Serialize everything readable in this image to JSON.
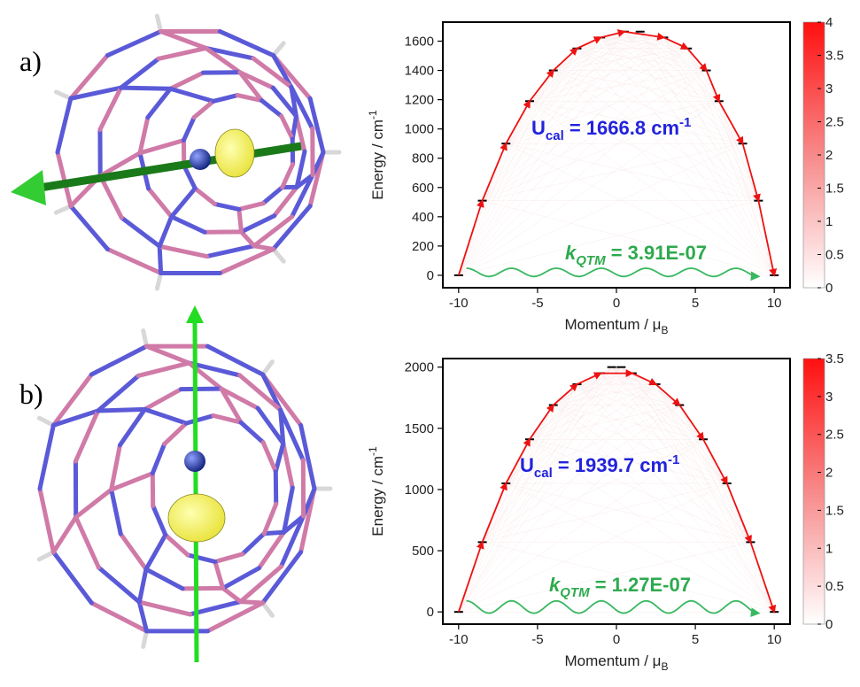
{
  "figure": {
    "panel_labels": [
      "a)",
      "b)"
    ]
  },
  "colors": {
    "ucal": "#2222dd",
    "kqtm": "#2eaa4e",
    "path": "#ee1111",
    "qtm": "#38b860",
    "molecule_bond_a": "#5a5ad8",
    "molecule_bond_b": "#d07aa8",
    "spin_axis_a": "#1a7a1a",
    "spin_axis_b": "#22dd22",
    "density": "#ffff55",
    "atom": "#1a2aa0"
  },
  "chart_data": [
    {
      "type": "line",
      "xlabel_main": "Momentum / μ",
      "xlabel_sub": "B",
      "ylabel_main": "Energy / cm",
      "ylabel_sup": "-1",
      "xlim": [
        -11,
        11
      ],
      "ylim": [
        -85,
        1730
      ],
      "xticks": [
        -10,
        -5,
        0,
        5,
        10
      ],
      "yticks": [
        0,
        200,
        400,
        600,
        800,
        1000,
        1200,
        1400,
        1600
      ],
      "states": [
        {
          "x": -10,
          "y": 0
        },
        {
          "x": -8.5,
          "y": 510
        },
        {
          "x": -7,
          "y": 900
        },
        {
          "x": -5.5,
          "y": 1190
        },
        {
          "x": -4,
          "y": 1400
        },
        {
          "x": -2.5,
          "y": 1550
        },
        {
          "x": -1,
          "y": 1625
        },
        {
          "x": 0.5,
          "y": 1665
        },
        {
          "x": 1.5,
          "y": 1665
        },
        {
          "x": 3,
          "y": 1625
        },
        {
          "x": 4.5,
          "y": 1550
        },
        {
          "x": 5.7,
          "y": 1400
        },
        {
          "x": 6.5,
          "y": 1190
        },
        {
          "x": 8,
          "y": 900
        },
        {
          "x": 9,
          "y": 510
        },
        {
          "x": 10,
          "y": 0
        }
      ],
      "relaxation_path": [
        {
          "x": -10,
          "y": 0
        },
        {
          "x": -8.5,
          "y": 510
        },
        {
          "x": -7,
          "y": 900
        },
        {
          "x": -5.5,
          "y": 1190
        },
        {
          "x": -4,
          "y": 1400
        },
        {
          "x": -2.5,
          "y": 1550
        },
        {
          "x": -1,
          "y": 1625
        },
        {
          "x": 0.5,
          "y": 1665
        },
        {
          "x": 3,
          "y": 1625
        },
        {
          "x": 4.5,
          "y": 1550
        },
        {
          "x": 5.7,
          "y": 1400
        },
        {
          "x": 6.5,
          "y": 1190
        },
        {
          "x": 8,
          "y": 900
        },
        {
          "x": 9,
          "y": 510
        },
        {
          "x": 10,
          "y": 0
        }
      ],
      "qtm_wave": {
        "x_start": -9.5,
        "x_end": 9,
        "base": 20,
        "amplitude": 28,
        "periods": 6.5
      },
      "ucal_prefix": "U",
      "ucal_sub": "cal",
      "ucal_value": " = 1666.8 cm",
      "ucal_sup": "-1",
      "kqtm_prefix": "k",
      "kqtm_sub": "QTM",
      "kqtm_value": " = 3.91E-07",
      "colorbar": {
        "min": 0,
        "max": 4,
        "ticks": [
          "0",
          "0.5",
          "1",
          "1.5",
          "2",
          "2.5",
          "3",
          "3.5",
          "4"
        ]
      }
    },
    {
      "type": "line",
      "xlabel_main": "Momentum / μ",
      "xlabel_sub": "B",
      "ylabel_main": "Energy / cm",
      "ylabel_sup": "-1",
      "xlim": [
        -11,
        11
      ],
      "ylim": [
        -100,
        2070
      ],
      "xticks": [
        -10,
        -5,
        0,
        5,
        10
      ],
      "yticks": [
        0,
        500,
        1000,
        1500,
        2000
      ],
      "states": [
        {
          "x": -10,
          "y": 0
        },
        {
          "x": -8.5,
          "y": 570
        },
        {
          "x": -7,
          "y": 1050
        },
        {
          "x": -5.5,
          "y": 1410
        },
        {
          "x": -4,
          "y": 1690
        },
        {
          "x": -2.5,
          "y": 1860
        },
        {
          "x": -1,
          "y": 1950
        },
        {
          "x": -0.3,
          "y": 2000
        },
        {
          "x": 0.3,
          "y": 2000
        },
        {
          "x": 1,
          "y": 1950
        },
        {
          "x": 2.5,
          "y": 1860
        },
        {
          "x": 4,
          "y": 1690
        },
        {
          "x": 5.5,
          "y": 1410
        },
        {
          "x": 7,
          "y": 1050
        },
        {
          "x": 8.5,
          "y": 570
        },
        {
          "x": 10,
          "y": 0
        }
      ],
      "relaxation_path": [
        {
          "x": -10,
          "y": 0
        },
        {
          "x": -8.5,
          "y": 570
        },
        {
          "x": -7,
          "y": 1050
        },
        {
          "x": -5.5,
          "y": 1410
        },
        {
          "x": -4,
          "y": 1690
        },
        {
          "x": -2.5,
          "y": 1860
        },
        {
          "x": -1,
          "y": 1950
        },
        {
          "x": 1,
          "y": 1950
        },
        {
          "x": 2.5,
          "y": 1860
        },
        {
          "x": 4,
          "y": 1690
        },
        {
          "x": 5.5,
          "y": 1410
        },
        {
          "x": 7,
          "y": 1050
        },
        {
          "x": 8.5,
          "y": 570
        },
        {
          "x": 10,
          "y": 0
        }
      ],
      "qtm_wave": {
        "x_start": -9.5,
        "x_end": 9,
        "base": 40,
        "amplitude": 50,
        "periods": 6.5
      },
      "ucal_prefix": "U",
      "ucal_sub": "cal",
      "ucal_value": " =  1939.7 cm",
      "ucal_sup": "-1",
      "kqtm_prefix": "k",
      "kqtm_sub": "QTM",
      "kqtm_value": " = 1.27E-07",
      "colorbar": {
        "min": 0,
        "max": 3.5,
        "ticks": [
          "0",
          "0.5",
          "1",
          "1.5",
          "2",
          "2.5",
          "3",
          "3.5"
        ]
      }
    }
  ]
}
